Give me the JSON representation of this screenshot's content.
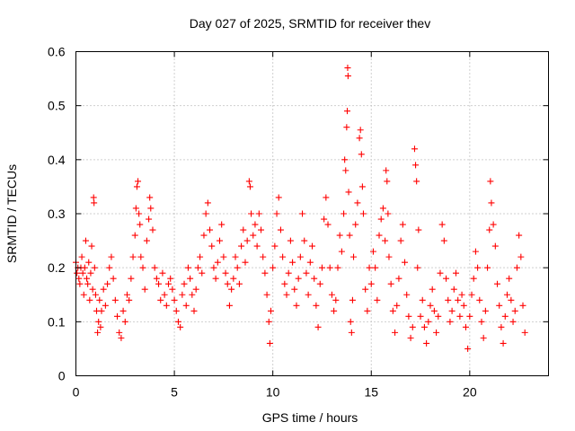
{
  "chart_data": {
    "type": "scatter",
    "title": "Day 027 of 2025, SRMTID for receiver thev",
    "xlabel": "GPS time / hours",
    "ylabel": "SRMTID / TECUs",
    "xlim": [
      0,
      24
    ],
    "ylim": [
      0,
      0.6
    ],
    "xticks": [
      0,
      5,
      10,
      15,
      20
    ],
    "xtick_labels": [
      "0",
      "5",
      "10",
      "15",
      "20"
    ],
    "yticks": [
      0,
      0.1,
      0.2,
      0.3,
      0.4,
      0.5,
      0.6
    ],
    "ytick_labels": [
      "0",
      "0.1",
      "0.2",
      "0.3",
      "0.4",
      "0.5",
      "0.6"
    ],
    "grid": true,
    "marker": "+",
    "color": "#ff0000",
    "series": [
      {
        "name": "SRMTID",
        "points": [
          [
            0.0,
            0.21
          ],
          [
            0.05,
            0.19
          ],
          [
            0.1,
            0.2
          ],
          [
            0.15,
            0.18
          ],
          [
            0.2,
            0.17
          ],
          [
            0.25,
            0.2
          ],
          [
            0.3,
            0.22
          ],
          [
            0.35,
            0.19
          ],
          [
            0.4,
            0.15
          ],
          [
            0.45,
            0.2
          ],
          [
            0.5,
            0.25
          ],
          [
            0.55,
            0.18
          ],
          [
            0.6,
            0.17
          ],
          [
            0.65,
            0.21
          ],
          [
            0.7,
            0.14
          ],
          [
            0.75,
            0.19
          ],
          [
            0.8,
            0.24
          ],
          [
            0.85,
            0.16
          ],
          [
            0.9,
            0.33
          ],
          [
            0.92,
            0.32
          ],
          [
            0.95,
            0.2
          ],
          [
            1.0,
            0.15
          ],
          [
            1.05,
            0.12
          ],
          [
            1.1,
            0.08
          ],
          [
            1.15,
            0.1
          ],
          [
            1.2,
            0.14
          ],
          [
            1.25,
            0.09
          ],
          [
            1.3,
            0.12
          ],
          [
            1.4,
            0.16
          ],
          [
            1.5,
            0.13
          ],
          [
            1.6,
            0.17
          ],
          [
            1.7,
            0.2
          ],
          [
            1.8,
            0.22
          ],
          [
            1.9,
            0.18
          ],
          [
            2.0,
            0.14
          ],
          [
            2.1,
            0.11
          ],
          [
            2.2,
            0.08
          ],
          [
            2.3,
            0.07
          ],
          [
            2.4,
            0.12
          ],
          [
            2.5,
            0.1
          ],
          [
            2.6,
            0.15
          ],
          [
            2.7,
            0.14
          ],
          [
            2.8,
            0.18
          ],
          [
            2.9,
            0.22
          ],
          [
            3.0,
            0.26
          ],
          [
            3.05,
            0.31
          ],
          [
            3.1,
            0.35
          ],
          [
            3.15,
            0.36
          ],
          [
            3.2,
            0.3
          ],
          [
            3.25,
            0.28
          ],
          [
            3.3,
            0.22
          ],
          [
            3.4,
            0.2
          ],
          [
            3.5,
            0.16
          ],
          [
            3.6,
            0.25
          ],
          [
            3.7,
            0.29
          ],
          [
            3.75,
            0.33
          ],
          [
            3.8,
            0.31
          ],
          [
            3.9,
            0.27
          ],
          [
            4.0,
            0.2
          ],
          [
            4.1,
            0.18
          ],
          [
            4.2,
            0.17
          ],
          [
            4.3,
            0.14
          ],
          [
            4.4,
            0.19
          ],
          [
            4.5,
            0.15
          ],
          [
            4.6,
            0.13
          ],
          [
            4.7,
            0.17
          ],
          [
            4.8,
            0.18
          ],
          [
            4.9,
            0.16
          ],
          [
            5.0,
            0.14
          ],
          [
            5.1,
            0.12
          ],
          [
            5.2,
            0.1
          ],
          [
            5.3,
            0.09
          ],
          [
            5.4,
            0.15
          ],
          [
            5.5,
            0.17
          ],
          [
            5.6,
            0.13
          ],
          [
            5.7,
            0.2
          ],
          [
            5.8,
            0.18
          ],
          [
            5.9,
            0.15
          ],
          [
            6.0,
            0.12
          ],
          [
            6.1,
            0.16
          ],
          [
            6.2,
            0.2
          ],
          [
            6.3,
            0.22
          ],
          [
            6.4,
            0.19
          ],
          [
            6.5,
            0.26
          ],
          [
            6.6,
            0.3
          ],
          [
            6.7,
            0.32
          ],
          [
            6.8,
            0.27
          ],
          [
            6.9,
            0.24
          ],
          [
            7.0,
            0.2
          ],
          [
            7.1,
            0.18
          ],
          [
            7.2,
            0.21
          ],
          [
            7.3,
            0.25
          ],
          [
            7.4,
            0.28
          ],
          [
            7.5,
            0.22
          ],
          [
            7.6,
            0.19
          ],
          [
            7.7,
            0.17
          ],
          [
            7.8,
            0.13
          ],
          [
            7.9,
            0.16
          ],
          [
            8.0,
            0.18
          ],
          [
            8.1,
            0.22
          ],
          [
            8.2,
            0.2
          ],
          [
            8.3,
            0.17
          ],
          [
            8.4,
            0.24
          ],
          [
            8.5,
            0.27
          ],
          [
            8.6,
            0.21
          ],
          [
            8.7,
            0.25
          ],
          [
            8.8,
            0.36
          ],
          [
            8.85,
            0.35
          ],
          [
            8.9,
            0.3
          ],
          [
            9.0,
            0.26
          ],
          [
            9.1,
            0.28
          ],
          [
            9.2,
            0.24
          ],
          [
            9.3,
            0.3
          ],
          [
            9.4,
            0.27
          ],
          [
            9.5,
            0.22
          ],
          [
            9.6,
            0.19
          ],
          [
            9.7,
            0.15
          ],
          [
            9.8,
            0.1
          ],
          [
            9.85,
            0.06
          ],
          [
            9.9,
            0.12
          ],
          [
            10.0,
            0.2
          ],
          [
            10.1,
            0.24
          ],
          [
            10.2,
            0.3
          ],
          [
            10.3,
            0.33
          ],
          [
            10.4,
            0.27
          ],
          [
            10.5,
            0.22
          ],
          [
            10.6,
            0.17
          ],
          [
            10.7,
            0.15
          ],
          [
            10.8,
            0.19
          ],
          [
            10.9,
            0.25
          ],
          [
            11.0,
            0.21
          ],
          [
            11.1,
            0.16
          ],
          [
            11.2,
            0.13
          ],
          [
            11.3,
            0.18
          ],
          [
            11.4,
            0.22
          ],
          [
            11.5,
            0.3
          ],
          [
            11.6,
            0.25
          ],
          [
            11.7,
            0.19
          ],
          [
            11.8,
            0.15
          ],
          [
            11.9,
            0.21
          ],
          [
            12.0,
            0.24
          ],
          [
            12.1,
            0.18
          ],
          [
            12.2,
            0.13
          ],
          [
            12.3,
            0.09
          ],
          [
            12.4,
            0.17
          ],
          [
            12.5,
            0.2
          ],
          [
            12.6,
            0.29
          ],
          [
            12.7,
            0.33
          ],
          [
            12.8,
            0.28
          ],
          [
            12.9,
            0.2
          ],
          [
            13.0,
            0.15
          ],
          [
            13.1,
            0.12
          ],
          [
            13.2,
            0.14
          ],
          [
            13.3,
            0.2
          ],
          [
            13.4,
            0.26
          ],
          [
            13.5,
            0.23
          ],
          [
            13.6,
            0.3
          ],
          [
            13.65,
            0.4
          ],
          [
            13.7,
            0.38
          ],
          [
            13.75,
            0.46
          ],
          [
            13.78,
            0.49
          ],
          [
            13.8,
            0.57
          ],
          [
            13.82,
            0.555
          ],
          [
            13.85,
            0.34
          ],
          [
            13.9,
            0.26
          ],
          [
            13.95,
            0.1
          ],
          [
            14.0,
            0.08
          ],
          [
            14.05,
            0.14
          ],
          [
            14.1,
            0.22
          ],
          [
            14.2,
            0.28
          ],
          [
            14.3,
            0.32
          ],
          [
            14.4,
            0.44
          ],
          [
            14.45,
            0.455
          ],
          [
            14.5,
            0.41
          ],
          [
            14.55,
            0.35
          ],
          [
            14.6,
            0.3
          ],
          [
            14.7,
            0.16
          ],
          [
            14.8,
            0.12
          ],
          [
            14.9,
            0.2
          ],
          [
            15.0,
            0.17
          ],
          [
            15.1,
            0.23
          ],
          [
            15.2,
            0.2
          ],
          [
            15.3,
            0.14
          ],
          [
            15.4,
            0.26
          ],
          [
            15.5,
            0.29
          ],
          [
            15.6,
            0.31
          ],
          [
            15.7,
            0.25
          ],
          [
            15.75,
            0.38
          ],
          [
            15.8,
            0.36
          ],
          [
            15.85,
            0.3
          ],
          [
            15.9,
            0.22
          ],
          [
            16.0,
            0.17
          ],
          [
            16.1,
            0.12
          ],
          [
            16.2,
            0.08
          ],
          [
            16.3,
            0.13
          ],
          [
            16.4,
            0.18
          ],
          [
            16.5,
            0.25
          ],
          [
            16.6,
            0.28
          ],
          [
            16.7,
            0.21
          ],
          [
            16.8,
            0.15
          ],
          [
            16.9,
            0.11
          ],
          [
            17.0,
            0.07
          ],
          [
            17.1,
            0.09
          ],
          [
            17.2,
            0.42
          ],
          [
            17.25,
            0.39
          ],
          [
            17.3,
            0.36
          ],
          [
            17.35,
            0.2
          ],
          [
            17.4,
            0.27
          ],
          [
            17.5,
            0.11
          ],
          [
            17.6,
            0.14
          ],
          [
            17.7,
            0.09
          ],
          [
            17.8,
            0.06
          ],
          [
            17.9,
            0.1
          ],
          [
            18.0,
            0.13
          ],
          [
            18.1,
            0.16
          ],
          [
            18.2,
            0.12
          ],
          [
            18.3,
            0.08
          ],
          [
            18.4,
            0.11
          ],
          [
            18.5,
            0.19
          ],
          [
            18.6,
            0.28
          ],
          [
            18.7,
            0.25
          ],
          [
            18.8,
            0.18
          ],
          [
            18.9,
            0.14
          ],
          [
            19.0,
            0.1
          ],
          [
            19.1,
            0.12
          ],
          [
            19.2,
            0.16
          ],
          [
            19.3,
            0.19
          ],
          [
            19.4,
            0.14
          ],
          [
            19.5,
            0.11
          ],
          [
            19.6,
            0.15
          ],
          [
            19.7,
            0.13
          ],
          [
            19.8,
            0.09
          ],
          [
            19.9,
            0.05
          ],
          [
            20.0,
            0.11
          ],
          [
            20.1,
            0.15
          ],
          [
            20.2,
            0.18
          ],
          [
            20.3,
            0.23
          ],
          [
            20.4,
            0.2
          ],
          [
            20.5,
            0.14
          ],
          [
            20.6,
            0.1
          ],
          [
            20.7,
            0.07
          ],
          [
            20.8,
            0.12
          ],
          [
            20.9,
            0.2
          ],
          [
            21.0,
            0.27
          ],
          [
            21.05,
            0.36
          ],
          [
            21.1,
            0.32
          ],
          [
            21.2,
            0.28
          ],
          [
            21.3,
            0.24
          ],
          [
            21.4,
            0.17
          ],
          [
            21.5,
            0.13
          ],
          [
            21.6,
            0.09
          ],
          [
            21.7,
            0.06
          ],
          [
            21.8,
            0.11
          ],
          [
            21.9,
            0.15
          ],
          [
            22.0,
            0.18
          ],
          [
            22.1,
            0.14
          ],
          [
            22.2,
            0.1
          ],
          [
            22.3,
            0.12
          ],
          [
            22.4,
            0.2
          ],
          [
            22.5,
            0.26
          ],
          [
            22.6,
            0.22
          ],
          [
            22.7,
            0.13
          ],
          [
            22.8,
            0.08
          ]
        ]
      }
    ]
  }
}
